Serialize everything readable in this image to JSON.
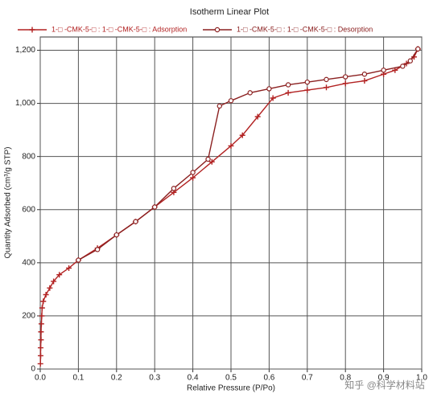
{
  "chart_data": {
    "type": "line",
    "title": "Isotherm Linear Plot",
    "x_label": "Relative Pressure (P/Po)",
    "y_label": "Quantity Adsorbed (cm³/g STP)",
    "watermark": "知乎 @科学材料站",
    "xlim": [
      0,
      1
    ],
    "ylim": [
      0,
      1250
    ],
    "xticks": [
      {
        "value": 0,
        "label": "0.0"
      },
      0.1,
      0.2,
      0.3,
      0.4,
      0.5,
      0.6,
      0.7,
      0.8,
      0.9,
      {
        "value": 1,
        "label": "1.0"
      }
    ],
    "yticks": [
      0,
      200,
      400,
      600,
      800,
      {
        "value": 1000,
        "label": "1,000"
      },
      {
        "value": 1200,
        "label": "1,200"
      }
    ],
    "grid": true,
    "legend": "top",
    "series": [
      {
        "name": "1-□ -CMK-5-□ : 1-□ -CMK-5-□ : Adsorption",
        "color": "#b22222",
        "marker": "plus",
        "x": [
          0.0005,
          0.001,
          0.001,
          0.002,
          0.002,
          0.003,
          0.004,
          0.005,
          0.008,
          0.015,
          0.025,
          0.035,
          0.05,
          0.075,
          0.1,
          0.15,
          0.2,
          0.25,
          0.3,
          0.35,
          0.4,
          0.45,
          0.5,
          0.53,
          0.57,
          0.61,
          0.65,
          0.7,
          0.75,
          0.8,
          0.85,
          0.9,
          0.93,
          0.96,
          0.98,
          0.99
        ],
        "values": [
          20,
          50,
          80,
          110,
          140,
          170,
          200,
          230,
          255,
          280,
          305,
          330,
          355,
          380,
          410,
          455,
          505,
          555,
          610,
          665,
          720,
          780,
          840,
          880,
          950,
          1020,
          1040,
          1050,
          1060,
          1075,
          1085,
          1110,
          1125,
          1150,
          1175,
          1205
        ]
      },
      {
        "name": "1-□ -CMK-5-□ : 1-□ -CMK-5-□ : Desorption",
        "color": "#8b2020",
        "marker": "circle",
        "x": [
          0.99,
          0.97,
          0.95,
          0.9,
          0.85,
          0.8,
          0.75,
          0.7,
          0.65,
          0.6,
          0.55,
          0.5,
          0.47,
          0.44,
          0.4,
          0.35,
          0.3,
          0.25,
          0.2,
          0.15,
          0.1
        ],
        "values": [
          1205,
          1160,
          1140,
          1125,
          1110,
          1100,
          1090,
          1080,
          1070,
          1055,
          1040,
          1010,
          990,
          790,
          740,
          680,
          610,
          555,
          505,
          450,
          410
        ]
      }
    ]
  }
}
